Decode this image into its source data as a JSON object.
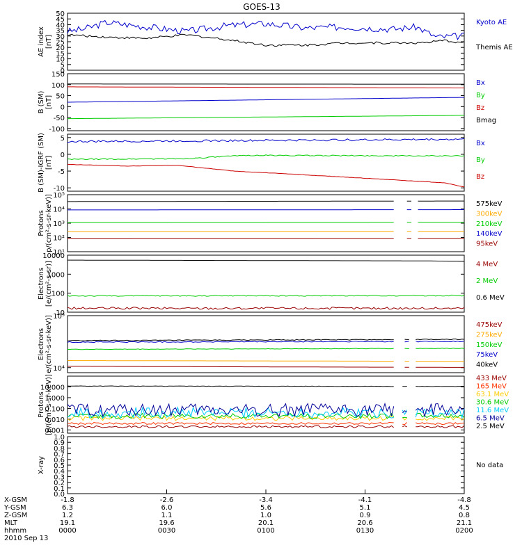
{
  "title": "GOES-13",
  "chart_data": [
    {
      "type": "line",
      "ylabel": "AE index\n[nT]",
      "yscale": "linear",
      "ylim": [
        0,
        50
      ],
      "yticks": [
        0,
        5,
        10,
        15,
        20,
        25,
        30,
        35,
        40,
        45,
        50
      ],
      "series": [
        {
          "name": "Kyoto AE",
          "color": "#0000cc",
          "noise": 3,
          "x": [
            0,
            0.04,
            0.1,
            0.2,
            0.3,
            0.4,
            0.5,
            0.6,
            0.7,
            0.82,
            0.88,
            0.93,
            1
          ],
          "values": [
            34,
            36,
            42,
            38,
            34,
            39,
            41,
            37,
            38,
            36,
            38,
            29,
            30
          ]
        },
        {
          "name": "Themis AE",
          "color": "#000000",
          "noise": 1,
          "x": [
            0,
            0.1,
            0.2,
            0.3,
            0.4,
            0.5,
            0.6,
            0.7,
            0.8,
            0.9,
            0.95,
            1
          ],
          "values": [
            31,
            29,
            28,
            31,
            27,
            22,
            22,
            24,
            24,
            24,
            26,
            24
          ]
        }
      ]
    },
    {
      "type": "line",
      "ylabel": "B (SM)\n[nT]",
      "yscale": "linear",
      "ylim": [
        -110,
        150
      ],
      "yticks": [
        -100,
        -50,
        0,
        50,
        100,
        150
      ],
      "series": [
        {
          "name": "Bx",
          "color": "#0000cc",
          "noise": 0,
          "x": [
            0,
            1
          ],
          "values": [
            20,
            42
          ]
        },
        {
          "name": "By",
          "color": "#00cc00",
          "noise": 0,
          "x": [
            0,
            1
          ],
          "values": [
            -55,
            -40
          ]
        },
        {
          "name": "Bz",
          "color": "#cc0000",
          "noise": 0,
          "x": [
            0,
            1
          ],
          "values": [
            90,
            85
          ]
        },
        {
          "name": "Bmag",
          "color": "#000000",
          "noise": 0,
          "x": [
            0,
            1
          ],
          "values": [
            103,
            102
          ]
        }
      ]
    },
    {
      "type": "line",
      "ylabel": "B (SM)-IGRF (SM)\n[nT]",
      "yscale": "linear",
      "ylim": [
        -11,
        6
      ],
      "yticks": [
        -10,
        -5,
        0,
        5
      ],
      "series": [
        {
          "name": "Bx",
          "color": "#0000cc",
          "noise": 0.3,
          "x": [
            0,
            1
          ],
          "values": [
            3.8,
            4.5
          ]
        },
        {
          "name": "By",
          "color": "#00cc00",
          "noise": 0.15,
          "x": [
            0,
            0.3,
            0.45,
            1
          ],
          "values": [
            -1.5,
            -1.3,
            -0.3,
            -0.5
          ]
        },
        {
          "name": "Bz",
          "color": "#cc0000",
          "noise": 0.05,
          "x": [
            0,
            0.15,
            0.28,
            0.42,
            0.55,
            0.7,
            0.85,
            0.95,
            1
          ],
          "values": [
            -3.0,
            -3.5,
            -3.3,
            -5.0,
            -5.8,
            -6.8,
            -7.8,
            -8.5,
            -9.8
          ]
        }
      ]
    },
    {
      "type": "line",
      "ylabel": "Protons\np/(cm²-s-sr-keV)]",
      "yscale": "log",
      "ylim": [
        10,
        100000
      ],
      "yticks": [
        10,
        100,
        1000,
        10000,
        100000
      ],
      "ytick_labels": [
        "10¹",
        "10²",
        "10³",
        "10⁴",
        "10⁵"
      ],
      "gaps": [
        [
          0.825,
          0.855
        ],
        [
          0.87,
          0.88
        ]
      ],
      "series": [
        {
          "name": "575keV",
          "color": "#000000",
          "noise": 0,
          "x": [
            0,
            1
          ],
          "values": [
            33000,
            36000
          ]
        },
        {
          "name": "300keV",
          "color": "#ffaa00",
          "noise": 0,
          "x": [
            0,
            1
          ],
          "values": [
            260,
            270
          ]
        },
        {
          "name": "210keV",
          "color": "#00cc00",
          "noise": 0,
          "x": [
            0,
            1
          ],
          "values": [
            1100,
            1150
          ]
        },
        {
          "name": "140keV",
          "color": "#0000cc",
          "noise": 0,
          "x": [
            0,
            1
          ],
          "values": [
            8500,
            8900
          ]
        },
        {
          "name": "95keV",
          "color": "#990000",
          "noise": 0,
          "x": [
            0,
            1
          ],
          "values": [
            80,
            82
          ]
        }
      ]
    },
    {
      "type": "line",
      "ylabel": "Electrons\n[e/(cm²-s-sr)]",
      "yscale": "log",
      "ylim": [
        10,
        10000
      ],
      "yticks": [
        10,
        100,
        1000,
        10000
      ],
      "ytick_labels": [
        "10",
        "100",
        "1000",
        "10000"
      ],
      "series": [
        {
          "name": "4 MeV",
          "color": "#990000",
          "noise": 0.06,
          "x": [
            0,
            1
          ],
          "values": [
            16,
            16
          ]
        },
        {
          "name": "2 MeV",
          "color": "#00cc00",
          "noise": 0.03,
          "x": [
            0,
            1
          ],
          "values": [
            72,
            75
          ]
        },
        {
          "name": "0.6 MeV",
          "color": "#000000",
          "noise": 0,
          "x": [
            0,
            0.9,
            1
          ],
          "values": [
            5500,
            5000,
            4700
          ]
        }
      ]
    },
    {
      "type": "line",
      "ylabel": "Electrons\ne/(cm²-s-sr-keV)]",
      "yscale": "log",
      "ylim": [
        8000,
        100000
      ],
      "yticks": [
        10000,
        100000
      ],
      "ytick_labels": [
        "10⁴",
        "10⁵"
      ],
      "gaps": [
        [
          0.825,
          0.845
        ],
        [
          0.865,
          0.875
        ]
      ],
      "series": [
        {
          "name": "475keV",
          "color": "#990000",
          "noise": 0,
          "x": [
            0,
            1
          ],
          "values": [
            10600,
            10100
          ]
        },
        {
          "name": "275keV",
          "color": "#ffaa00",
          "noise": 0,
          "x": [
            0,
            1
          ],
          "values": [
            13700,
            13200
          ]
        },
        {
          "name": "150keV",
          "color": "#00cc00",
          "noise": 0.005,
          "x": [
            0,
            1
          ],
          "values": [
            22500,
            23500
          ]
        },
        {
          "name": "75keV",
          "color": "#0000cc",
          "noise": 0.01,
          "x": [
            0,
            1
          ],
          "values": [
            31000,
            32000
          ]
        },
        {
          "name": "40keV",
          "color": "#000000",
          "noise": 0.008,
          "x": [
            0,
            1
          ],
          "values": [
            33000,
            35000
          ]
        }
      ]
    },
    {
      "type": "line",
      "ylabel": "Protons\n[p/(cm²-s-sr-keV)]",
      "yscale": "log",
      "ylim": [
        0.0005,
        100
      ],
      "yticks": [
        0.001,
        0.01,
        0.1,
        1,
        10
      ],
      "ytick_labels": [
        "0.001",
        "0.010",
        "0.100",
        "1.000",
        "10.000"
      ],
      "gaps": [
        [
          0.825,
          0.84
        ],
        [
          0.86,
          0.875
        ]
      ],
      "series": [
        {
          "name": "433 MeV",
          "color": "#990000",
          "noise": 0.1,
          "x": [
            0,
            1
          ],
          "values": [
            0.002,
            0.002
          ]
        },
        {
          "name": "165 MeV",
          "color": "#ff3300",
          "noise": 0.1,
          "x": [
            0,
            1
          ],
          "values": [
            0.004,
            0.004
          ]
        },
        {
          "name": "63.1 MeV",
          "color": "#ffcc00",
          "noise": 0.2,
          "x": [
            0,
            1
          ],
          "values": [
            0.012,
            0.012
          ]
        },
        {
          "name": "30.6 MeV",
          "color": "#00cc00",
          "noise": 0.25,
          "x": [
            0,
            1
          ],
          "values": [
            0.02,
            0.02
          ]
        },
        {
          "name": "11.6 MeV",
          "color": "#00ccff",
          "noise": 0.5,
          "x": [
            0,
            1
          ],
          "values": [
            0.04,
            0.04
          ]
        },
        {
          "name": "6.5 MeV",
          "color": "#000099",
          "noise": 0.6,
          "x": [
            0,
            1
          ],
          "values": [
            0.07,
            0.07
          ]
        },
        {
          "name": "2.5 MeV",
          "color": "#000000",
          "noise": 0.02,
          "x": [
            0,
            1
          ],
          "values": [
            12,
            11
          ]
        }
      ]
    },
    {
      "type": "line",
      "ylabel": "X-ray",
      "yscale": "linear",
      "ylim": [
        0,
        1
      ],
      "yticks": [
        0,
        0.1,
        0.2,
        0.3,
        0.4,
        0.5,
        0.6,
        0.7,
        0.8,
        0.9,
        1.0
      ],
      "ytick_labels": [
        "0.0",
        "0.1",
        "0.2",
        "0.3",
        "0.4",
        "0.5",
        "0.6",
        "0.7",
        "0.8",
        "0.9",
        "1.0"
      ],
      "no_data_label": "No data",
      "series": []
    }
  ],
  "x_axis": {
    "row_labels": [
      "X-GSM",
      "Y-GSM",
      "Z-GSM",
      "MLT",
      "hhmm",
      "2010 Sep 13"
    ],
    "columns": [
      {
        "values": [
          "-1.8",
          "6.3",
          "1.2",
          "19.1",
          "0000"
        ]
      },
      {
        "values": [
          "-2.6",
          "6.0",
          "1.1",
          "19.6",
          "0030"
        ]
      },
      {
        "values": [
          "-3.4",
          "5.6",
          "1.0",
          "20.1",
          "0100"
        ]
      },
      {
        "values": [
          "-4.1",
          "5.1",
          "0.9",
          "20.6",
          "0130"
        ]
      },
      {
        "values": [
          "-4.8",
          "4.5",
          "0.8",
          "21.1",
          "0200"
        ]
      }
    ]
  }
}
